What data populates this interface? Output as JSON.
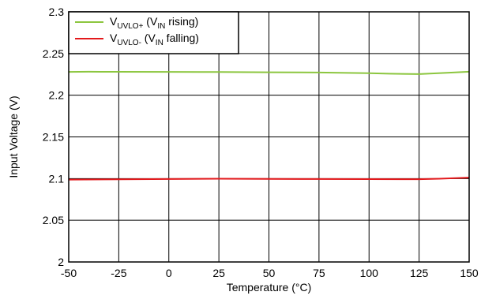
{
  "chart_data": {
    "type": "line",
    "xlabel": "Temperature (°C)",
    "ylabel": "Input Voltage (V)",
    "xlim": [
      -50,
      150
    ],
    "ylim": [
      2,
      2.3
    ],
    "x_ticks": [
      -50,
      -25,
      0,
      25,
      50,
      75,
      100,
      125,
      150
    ],
    "y_ticks": [
      2,
      2.05,
      2.1,
      2.15,
      2.2,
      2.25,
      2.3
    ],
    "x_tick_labels": [
      "-50",
      "-25",
      "0",
      "25",
      "50",
      "75",
      "100",
      "125",
      "150"
    ],
    "y_tick_labels": [
      "2",
      "2.05",
      "2.1",
      "2.15",
      "2.2",
      "2.25",
      "2.3"
    ],
    "grid": true,
    "legend_position": "top-left",
    "series": [
      {
        "name": "VUVLO+ (VIN rising)",
        "legend": {
          "main1": "V",
          "sub1": "UVLO+",
          "mid": " (V",
          "sub2": "IN",
          "tail": " rising)"
        },
        "color": "#8cc63f",
        "x": [
          -50,
          -40,
          -25,
          0,
          25,
          50,
          75,
          100,
          110,
          125,
          140,
          150
        ],
        "y": [
          2.228,
          2.2282,
          2.2281,
          2.228,
          2.2278,
          2.2275,
          2.2272,
          2.2265,
          2.2258,
          2.2253,
          2.227,
          2.2282
        ]
      },
      {
        "name": "VUVLO- (VIN falling)",
        "legend": {
          "main1": "V",
          "sub1": "UVLO-",
          "mid": " (V",
          "sub2": "IN",
          "tail": " falling)"
        },
        "color": "#e3191c",
        "x": [
          -50,
          -25,
          0,
          25,
          50,
          75,
          100,
          125,
          135,
          150
        ],
        "y": [
          2.0988,
          2.0992,
          2.0995,
          2.0998,
          2.0996,
          2.0995,
          2.0994,
          2.0993,
          2.0998,
          2.1012
        ]
      }
    ]
  }
}
